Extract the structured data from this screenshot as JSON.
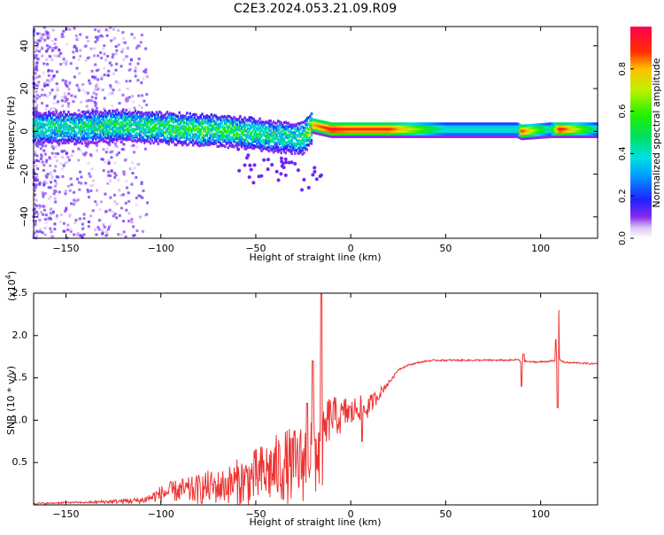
{
  "figure_title": "C2E3.2024.053.21.09.R09",
  "colors": {
    "snr_line": "#ee3333",
    "axis": "#000000",
    "spectrogram_bg": "#ffffff"
  },
  "chart_data": [
    {
      "type": "heatmap",
      "title": "C2E3.2024.053.21.09.R09",
      "xlabel": "Height of straight line (km)",
      "ylabel": "Frequency (Hz)",
      "xlim": [
        -167,
        130
      ],
      "ylim": [
        -50,
        49
      ],
      "xticks": [
        -150,
        -100,
        -50,
        0,
        50,
        100
      ],
      "yticks": [
        -40,
        -20,
        0,
        20,
        40
      ],
      "colorbar": {
        "label": "Normalized spectral amplitude",
        "range": [
          0,
          1
        ],
        "ticks": [
          "0.0",
          "0.2",
          "0.4",
          "0.6",
          "0.8"
        ],
        "tick_values": [
          0.0,
          0.2,
          0.4,
          0.6,
          0.8
        ],
        "colormap": "hsv-rainbow"
      },
      "ridge": {
        "description": "signal concentrated near 0 Hz; scattered noise at low heights, narrow stable band above about -20 km",
        "x": [
          -160,
          -140,
          -120,
          -100,
          -80,
          -60,
          -40,
          -25,
          -20,
          -10,
          0,
          20,
          50,
          88,
          90,
          105,
          110,
          130
        ],
        "center_hz": [
          2,
          2,
          3,
          2,
          1,
          0,
          -2,
          -3,
          3,
          1,
          1,
          1,
          1,
          1,
          0,
          1,
          1,
          1
        ],
        "peak_amplitude": [
          0.5,
          0.5,
          0.55,
          0.55,
          0.6,
          0.55,
          0.5,
          0.5,
          0.8,
          0.95,
          0.9,
          0.9,
          0.4,
          0.4,
          0.9,
          0.4,
          0.95,
          0.4
        ]
      }
    },
    {
      "type": "line",
      "xlabel": "Height of straight line (km)",
      "ylabel": "SNR (10 * v/v)",
      "y_multiplier_label": "(x10",
      "y_multiplier_exponent": "4",
      "y_multiplier_suffix": ")",
      "xlim": [
        -167,
        130
      ],
      "ylim": [
        0,
        2.5
      ],
      "xticks": [
        -150,
        -100,
        -50,
        0,
        50,
        100
      ],
      "yticks": [
        0.5,
        1.0,
        1.5,
        2.0,
        2.5
      ],
      "ytick_labels": [
        "0.5",
        "1.0",
        "1.5",
        "2.0",
        "2.5"
      ],
      "series": [
        {
          "x": [
            -167,
            -160,
            -150,
            -140,
            -130,
            -120,
            -110,
            -105,
            -100,
            -95,
            -90,
            -85,
            -80,
            -75,
            -70,
            -65,
            -60,
            -55,
            -50,
            -45,
            -40,
            -35,
            -30,
            -25,
            -22,
            -20,
            -18,
            -16,
            -15,
            -14,
            -12,
            -10,
            -8,
            -6,
            -4,
            -2,
            0,
            2,
            4,
            6,
            8,
            10,
            12,
            14,
            16,
            18,
            20,
            22,
            25,
            30,
            35,
            40,
            45,
            50,
            55,
            60,
            65,
            70,
            75,
            80,
            85,
            88,
            90,
            92,
            95,
            100,
            105,
            108,
            109,
            110,
            111,
            112,
            115,
            120,
            125,
            130
          ],
          "mean": [
            0.02,
            0.02,
            0.03,
            0.03,
            0.04,
            0.05,
            0.06,
            0.1,
            0.15,
            0.18,
            0.2,
            0.2,
            0.22,
            0.25,
            0.25,
            0.28,
            0.32,
            0.35,
            0.4,
            0.45,
            0.5,
            0.55,
            0.55,
            0.6,
            0.7,
            0.8,
            0.75,
            0.7,
            0.7,
            0.85,
            1.05,
            1.1,
            1.1,
            1.05,
            1.1,
            1.15,
            1.1,
            1.15,
            1.2,
            1.15,
            1.15,
            1.2,
            1.25,
            1.3,
            1.35,
            1.4,
            1.45,
            1.5,
            1.6,
            1.65,
            1.68,
            1.7,
            1.71,
            1.71,
            1.71,
            1.71,
            1.71,
            1.71,
            1.71,
            1.71,
            1.71,
            1.72,
            1.68,
            1.7,
            1.69,
            1.69,
            1.7,
            1.7,
            1.72,
            1.73,
            1.7,
            1.69,
            1.68,
            1.68,
            1.67,
            1.67
          ],
          "noise": [
            0.01,
            0.01,
            0.01,
            0.01,
            0.02,
            0.03,
            0.04,
            0.06,
            0.1,
            0.12,
            0.14,
            0.16,
            0.18,
            0.2,
            0.2,
            0.22,
            0.28,
            0.3,
            0.34,
            0.38,
            0.4,
            0.45,
            0.45,
            0.48,
            0.5,
            0.6,
            0.55,
            0.5,
            0.45,
            0.35,
            0.3,
            0.25,
            0.22,
            0.2,
            0.2,
            0.2,
            0.18,
            0.16,
            0.16,
            0.15,
            0.14,
            0.12,
            0.1,
            0.08,
            0.06,
            0.04,
            0.03,
            0.02,
            0.01,
            0.01,
            0.01,
            0.01,
            0.01,
            0.01,
            0.01,
            0.01,
            0.01,
            0.01,
            0.01,
            0.01,
            0.01,
            0.01,
            0.01,
            0.01,
            0.01,
            0.01,
            0.01,
            0.01,
            0.01,
            0.01,
            0.01,
            0.01,
            0.01,
            0.01,
            0.01,
            0.01
          ],
          "spikes": [
            {
              "x": -15.5,
              "y": 2.5
            },
            {
              "x": -20,
              "y": 1.7
            },
            {
              "x": -23,
              "y": 1.2
            },
            {
              "x": 6,
              "y": 0.75
            },
            {
              "x": 90,
              "y": 1.4
            },
            {
              "x": 91,
              "y": 1.78
            },
            {
              "x": 109.5,
              "y": 2.3
            },
            {
              "x": 109,
              "y": 1.15
            },
            {
              "x": 108,
              "y": 1.95
            }
          ]
        }
      ]
    }
  ]
}
